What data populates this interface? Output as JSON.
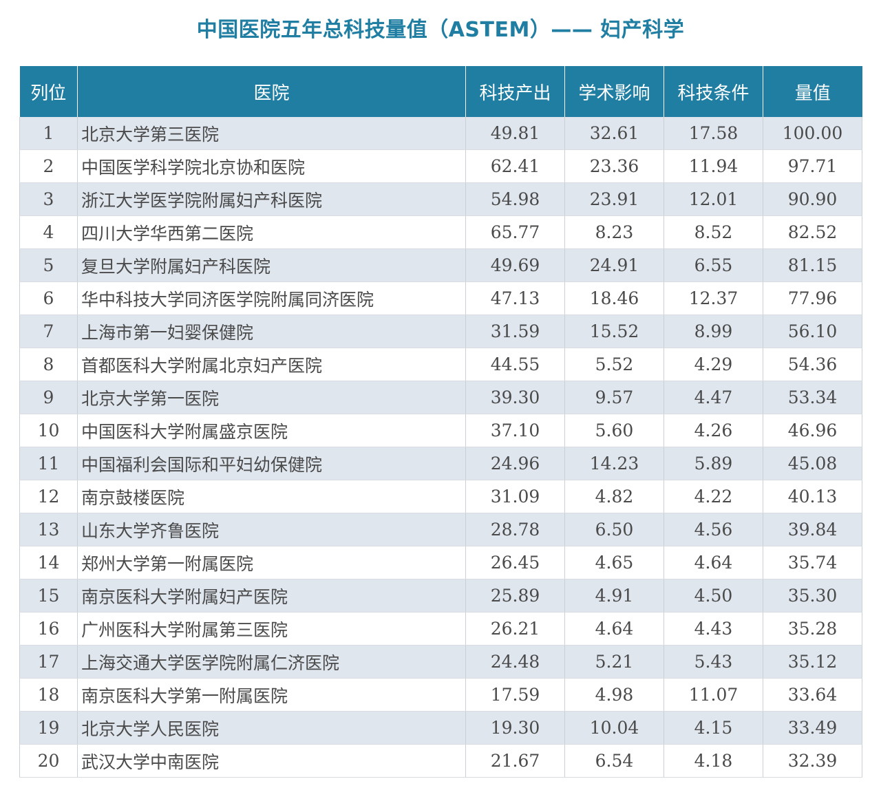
{
  "title": "中国医院五年总科技量值（ASTEM）—— 妇产科学",
  "headers": [
    "列位",
    "医院",
    "科技产出",
    "学术影响",
    "科技条件",
    "量值"
  ],
  "rows": [
    {
      "rank": "1",
      "hospital": "北京大学第三医院",
      "output": "49.81",
      "impact": "32.61",
      "condition": "17.58",
      "value": "100.00"
    },
    {
      "rank": "2",
      "hospital": "中国医学科学院北京协和医院",
      "output": "62.41",
      "impact": "23.36",
      "condition": "11.94",
      "value": "97.71"
    },
    {
      "rank": "3",
      "hospital": "浙江大学医学院附属妇产科医院",
      "output": "54.98",
      "impact": "23.91",
      "condition": "12.01",
      "value": "90.90"
    },
    {
      "rank": "4",
      "hospital": "四川大学华西第二医院",
      "output": "65.77",
      "impact": "8.23",
      "condition": "8.52",
      "value": "82.52"
    },
    {
      "rank": "5",
      "hospital": "复旦大学附属妇产科医院",
      "output": "49.69",
      "impact": "24.91",
      "condition": "6.55",
      "value": "81.15"
    },
    {
      "rank": "6",
      "hospital": "华中科技大学同济医学院附属同济医院",
      "output": "47.13",
      "impact": "18.46",
      "condition": "12.37",
      "value": "77.96"
    },
    {
      "rank": "7",
      "hospital": "上海市第一妇婴保健院",
      "output": "31.59",
      "impact": "15.52",
      "condition": "8.99",
      "value": "56.10"
    },
    {
      "rank": "8",
      "hospital": "首都医科大学附属北京妇产医院",
      "output": "44.55",
      "impact": "5.52",
      "condition": "4.29",
      "value": "54.36"
    },
    {
      "rank": "9",
      "hospital": "北京大学第一医院",
      "output": "39.30",
      "impact": "9.57",
      "condition": "4.47",
      "value": "53.34"
    },
    {
      "rank": "10",
      "hospital": "中国医科大学附属盛京医院",
      "output": "37.10",
      "impact": "5.60",
      "condition": "4.26",
      "value": "46.96"
    },
    {
      "rank": "11",
      "hospital": "中国福利会国际和平妇幼保健院",
      "output": "24.96",
      "impact": "14.23",
      "condition": "5.89",
      "value": "45.08"
    },
    {
      "rank": "12",
      "hospital": "南京鼓楼医院",
      "output": "31.09",
      "impact": "4.82",
      "condition": "4.22",
      "value": "40.13"
    },
    {
      "rank": "13",
      "hospital": "山东大学齐鲁医院",
      "output": "28.78",
      "impact": "6.50",
      "condition": "4.56",
      "value": "39.84"
    },
    {
      "rank": "14",
      "hospital": "郑州大学第一附属医院",
      "output": "26.45",
      "impact": "4.65",
      "condition": "4.64",
      "value": "35.74"
    },
    {
      "rank": "15",
      "hospital": "南京医科大学附属妇产医院",
      "output": "25.89",
      "impact": "4.91",
      "condition": "4.50",
      "value": "35.30"
    },
    {
      "rank": "16",
      "hospital": "广州医科大学附属第三医院",
      "output": "26.21",
      "impact": "4.64",
      "condition": "4.43",
      "value": "35.28"
    },
    {
      "rank": "17",
      "hospital": "上海交通大学医学院附属仁济医院",
      "output": "24.48",
      "impact": "5.21",
      "condition": "5.43",
      "value": "35.12"
    },
    {
      "rank": "18",
      "hospital": "南京医科大学第一附属医院",
      "output": "17.59",
      "impact": "4.98",
      "condition": "11.07",
      "value": "33.64"
    },
    {
      "rank": "19",
      "hospital": "北京大学人民医院",
      "output": "19.30",
      "impact": "10.04",
      "condition": "4.15",
      "value": "33.49"
    },
    {
      "rank": "20",
      "hospital": "武汉大学中南医院",
      "output": "21.67",
      "impact": "6.54",
      "condition": "4.18",
      "value": "32.39"
    }
  ]
}
